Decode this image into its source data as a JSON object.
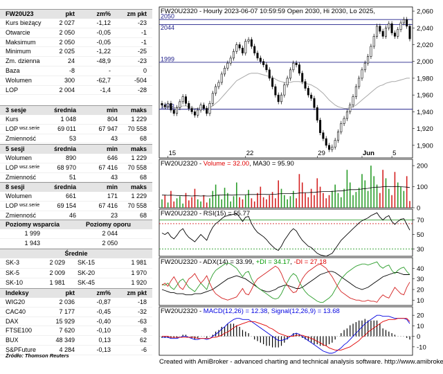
{
  "quote": {
    "symbol": "FW20U23",
    "headers": [
      "pkt",
      "zm%",
      "zm pkt"
    ],
    "rows": [
      {
        "label": "Kurs bieżący",
        "pkt": "2 027",
        "zm_pct": "-1,12",
        "zm_pkt": "-23"
      },
      {
        "label": "Otwarcie",
        "pkt": "2 050",
        "zm_pct": "-0,05",
        "zm_pkt": "-1"
      },
      {
        "label": "Maksimum",
        "pkt": "2 050",
        "zm_pct": "-0,05",
        "zm_pkt": "-1"
      },
      {
        "label": "Minimum",
        "pkt": "2 025",
        "zm_pct": "-1,22",
        "zm_pkt": "-25"
      },
      {
        "label": "Zm. dzienna",
        "pkt": "24",
        "zm_pct": "-48,9",
        "zm_pkt": "-23"
      },
      {
        "label": "Baza",
        "pkt": "-8",
        "zm_pct": "-",
        "zm_pkt": "0"
      },
      {
        "label": "Wolumen",
        "pkt": "300",
        "zm_pct": "-62,7",
        "zm_pkt": "-504"
      },
      {
        "label": "LOP",
        "pkt": "2 004",
        "zm_pct": "-1,4",
        "zm_pkt": "-28"
      }
    ]
  },
  "sessions": [
    {
      "title": "3 sesje",
      "headers": [
        "średnia",
        "min",
        "maks"
      ],
      "rows": [
        {
          "label": "Kurs",
          "avg": "1 048",
          "min": "804",
          "max": "1 229"
        },
        {
          "label": "LOP",
          "label_small": "wsz.serie",
          "avg": "69 011",
          "min": "67 947",
          "max": "70 558"
        },
        {
          "label": "Zmienność",
          "avg": "53",
          "min": "43",
          "max": "68"
        }
      ]
    },
    {
      "title": "5 sesji",
      "headers": [
        "średnia",
        "min",
        "maks"
      ],
      "rows": [
        {
          "label": "Wolumen",
          "avg": "890",
          "min": "646",
          "max": "1 229"
        },
        {
          "label": "LOP",
          "label_small": "wsz.serie",
          "avg": "68 970",
          "min": "67 416",
          "max": "70 558"
        },
        {
          "label": "Zmienność",
          "avg": "51",
          "min": "43",
          "max": "68"
        }
      ]
    },
    {
      "title": "8 sesji",
      "headers": [
        "średnia",
        "min",
        "maks"
      ],
      "rows": [
        {
          "label": "Wolumen",
          "avg": "661",
          "min": "171",
          "max": "1 229"
        },
        {
          "label": "LOP",
          "label_small": "wsz.serie",
          "avg": "69 154",
          "min": "67 416",
          "max": "70 558"
        },
        {
          "label": "Zmienność",
          "avg": "46",
          "min": "23",
          "max": "68"
        }
      ]
    }
  ],
  "levels": {
    "support_title": "Poziomy wsparcia",
    "resistance_title": "Poziomy oporu",
    "rows": [
      {
        "support": "1 999",
        "resistance": "2 044"
      },
      {
        "support": "1 943",
        "resistance": "2 050"
      }
    ]
  },
  "averages": {
    "title": "Średnie",
    "rows": [
      {
        "l1": "SK-3",
        "v1": "2 029",
        "l2": "SK-15",
        "v2": "1 981"
      },
      {
        "l1": "SK-5",
        "v1": "2 009",
        "l2": "SK-20",
        "v2": "1 970"
      },
      {
        "l1": "SK-10",
        "v1": "1 981",
        "l2": "SK-45",
        "v2": "1 920"
      }
    ]
  },
  "indices": {
    "title": "Indeksy",
    "headers": [
      "pkt",
      "zm%",
      "zm pkt"
    ],
    "rows": [
      {
        "label": "WIG20",
        "pkt": "2 036",
        "zm_pct": "-0,87",
        "zm_pkt": "-18"
      },
      {
        "label": "CAC40",
        "pkt": "7 177",
        "zm_pct": "-0,45",
        "zm_pkt": "-32"
      },
      {
        "label": "DAX",
        "pkt": "15 929",
        "zm_pct": "-0,40",
        "zm_pkt": "-63"
      },
      {
        "label": "FTSE100",
        "pkt": "7 620",
        "zm_pct": "-0,10",
        "zm_pkt": "-8"
      },
      {
        "label": "BUX",
        "pkt": "48 349",
        "zm_pct": "0,13",
        "zm_pkt": "62"
      },
      {
        "label": "S&PFuture",
        "pkt": "4 284",
        "zm_pct": "-0,13",
        "zm_pkt": "-6"
      }
    ]
  },
  "source": "Źródło: Thomson Reuters",
  "footer": "Created with AmiBroker - advanced charting and technical analysis software. http://www.amibroker.com",
  "chart_data": [
    {
      "type": "candlestick",
      "title": "FW20U2320 - Hourly 2023-06-07 10:59:59 Open 2030, Hi 2030, Lo 2025,",
      "ylim": [
        1885,
        2065
      ],
      "yticks": [
        "2,060",
        "2,040",
        "2,020",
        "2,000",
        "1,980",
        "1,960",
        "1,940",
        "1,920",
        "1,900"
      ],
      "ytick_values": [
        2060,
        2040,
        2020,
        2000,
        1980,
        1960,
        1940,
        1920,
        1900
      ],
      "xticks": [
        "15",
        "22",
        "29",
        "Jun",
        "5"
      ],
      "xtick_bars": [
        2,
        28,
        52,
        67,
        77
      ],
      "levels": [
        {
          "value": 2050,
          "label": "2050"
        },
        {
          "value": 2044,
          "label": "2044"
        },
        {
          "value": 1999,
          "label": "1999"
        },
        {
          "value": 1943,
          "label": "1943"
        }
      ],
      "close": [
        1948,
        1946,
        1950,
        1942,
        1938,
        1945,
        1952,
        1958,
        1950,
        1944,
        1940,
        1936,
        1942,
        1948,
        1944,
        1938,
        1950,
        1962,
        1970,
        1975,
        1985,
        1992,
        1998,
        2004,
        2012,
        2020,
        2016,
        2010,
        2024,
        2026,
        2018,
        2010,
        2004,
        2000,
        1996,
        1990,
        1980,
        1970,
        1960,
        1952,
        1960,
        1972,
        1980,
        1990,
        1998,
        1996,
        1986,
        1976,
        1968,
        1960,
        1956,
        1945,
        1930,
        1915,
        1908,
        1900,
        1895,
        1898,
        1906,
        1916,
        1926,
        1932,
        1940,
        1948,
        1958,
        1970,
        1980,
        1990,
        1998,
        2006,
        2018,
        2030,
        2042,
        2036,
        2030,
        2040,
        2045,
        2034,
        2030,
        2038,
        2046,
        2050,
        2042,
        2027
      ],
      "ma": [
        1946,
        1946,
        1947,
        1946,
        1945,
        1945,
        1946,
        1947,
        1947,
        1946,
        1945,
        1944,
        1944,
        1945,
        1945,
        1944,
        1945,
        1947,
        1950,
        1953,
        1957,
        1961,
        1965,
        1969,
        1973,
        1977,
        1979,
        1981,
        1983,
        1985,
        1986,
        1986,
        1986,
        1985,
        1984,
        1983,
        1982,
        1981,
        1979,
        1977,
        1976,
        1975,
        1975,
        1975,
        1976,
        1976,
        1976,
        1975,
        1974,
        1973,
        1972,
        1970,
        1968,
        1965,
        1962,
        1958,
        1954,
        1951,
        1948,
        1946,
        1945,
        1944,
        1944,
        1945,
        1946,
        1948,
        1951,
        1954,
        1957,
        1960,
        1963,
        1966,
        1969,
        1971,
        1972,
        1974,
        1975,
        1976,
        1976,
        1977,
        1978,
        1979,
        1980,
        1980
      ]
    },
    {
      "type": "bar",
      "title": "FW20U2320 - Volume = 32.00, MA30 = 95.90",
      "title_prefix": "FW20U2320 - ",
      "title_volume": "Volume = 32.00",
      "title_sep": ", ",
      "title_ma": "MA30 = 95.90",
      "yticks": [
        "200",
        "100",
        "0"
      ],
      "ytick_values": [
        200,
        100,
        0
      ],
      "ylim": [
        0,
        230
      ],
      "values": [
        40,
        60,
        25,
        80,
        30,
        45,
        55,
        20,
        70,
        35,
        50,
        90,
        40,
        30,
        60,
        25,
        45,
        80,
        110,
        60,
        40,
        95,
        70,
        30,
        55,
        120,
        50,
        40,
        60,
        85,
        45,
        30,
        70,
        100,
        50,
        40,
        60,
        75,
        45,
        130,
        90,
        60,
        40,
        55,
        80,
        45,
        160,
        120,
        70,
        50,
        90,
        60,
        140,
        100,
        70,
        45,
        60,
        80,
        110,
        70,
        50,
        90,
        180,
        120,
        60,
        75,
        95,
        160,
        130,
        80,
        200,
        150,
        110,
        70,
        180,
        140,
        90,
        60,
        170,
        120,
        100,
        80,
        150,
        32
      ],
      "ma": [
        60,
        60,
        59,
        60,
        59,
        58,
        58,
        57,
        57,
        57,
        56,
        57,
        57,
        56,
        57,
        56,
        56,
        57,
        59,
        60,
        60,
        61,
        61,
        60,
        60,
        62,
        62,
        62,
        62,
        63,
        63,
        63,
        63,
        64,
        64,
        63,
        63,
        64,
        64,
        66,
        67,
        67,
        67,
        67,
        68,
        68,
        70,
        71,
        72,
        72,
        73,
        73,
        75,
        76,
        77,
        77,
        77,
        78,
        79,
        80,
        80,
        81,
        84,
        86,
        86,
        86,
        87,
        89,
        91,
        92,
        95,
        97,
        98,
        98,
        100,
        101,
        101,
        100,
        101,
        101,
        100,
        99,
        98,
        96
      ]
    },
    {
      "type": "line",
      "title": "FW20U2320 - RSI(15) = 55.77",
      "yticks": [
        "70",
        "50",
        "30"
      ],
      "ytick_values": [
        70,
        50,
        30
      ],
      "ylim": [
        20,
        85
      ],
      "values": [
        52,
        50,
        53,
        47,
        44,
        49,
        55,
        58,
        51,
        46,
        43,
        40,
        45,
        50,
        46,
        42,
        52,
        60,
        65,
        68,
        72,
        75,
        76,
        77,
        78,
        79,
        74,
        68,
        74,
        75,
        65,
        58,
        53,
        50,
        47,
        43,
        38,
        34,
        30,
        28,
        34,
        42,
        48,
        54,
        58,
        55,
        48,
        42,
        38,
        34,
        32,
        28,
        24,
        22,
        21,
        20,
        22,
        24,
        30,
        36,
        42,
        46,
        50,
        54,
        58,
        62,
        66,
        69,
        71,
        73,
        76,
        78,
        80,
        74,
        70,
        74,
        76,
        68,
        64,
        68,
        71,
        72,
        64,
        56
      ]
    },
    {
      "type": "line",
      "title": "FW20U2320 - ADX(14) = 33.99, +DI = 34.17, -DI = 27.18",
      "title_prefix": "FW20U2320 - ADX(14) = 33.99, ",
      "title_pdi": "+DI = 34.17",
      "title_sep": ", ",
      "title_mdi": "-DI = 27.18",
      "yticks": [
        "40",
        "30",
        "20",
        "10"
      ],
      "ytick_values": [
        40,
        30,
        20,
        10
      ],
      "ylim": [
        5,
        50
      ],
      "series": [
        {
          "name": "ADX(14)",
          "values": [
            20,
            19,
            18,
            17,
            17,
            16,
            16,
            16,
            15,
            15,
            15,
            16,
            16,
            16,
            17,
            18,
            19,
            20,
            22,
            24,
            26,
            28,
            30,
            31,
            32,
            33,
            32,
            31,
            30,
            28,
            26,
            24,
            22,
            20,
            19,
            18,
            18,
            19,
            20,
            22,
            23,
            24,
            24,
            23,
            22,
            21,
            21,
            22,
            24,
            26,
            28,
            30,
            32,
            34,
            35,
            36,
            37,
            37,
            36,
            34,
            32,
            30,
            28,
            26,
            24,
            22,
            21,
            20,
            21,
            22,
            24,
            26,
            28,
            30,
            32,
            33,
            34,
            35,
            36,
            36,
            35,
            34,
            34,
            34
          ]
        },
        {
          "name": "+DI",
          "values": [
            25,
            24,
            26,
            22,
            20,
            24,
            28,
            30,
            26,
            22,
            20,
            18,
            22,
            26,
            23,
            20,
            28,
            34,
            38,
            40,
            42,
            44,
            45,
            44,
            42,
            40,
            36,
            32,
            36,
            37,
            30,
            25,
            22,
            20,
            18,
            16,
            14,
            12,
            11,
            12,
            16,
            22,
            27,
            32,
            35,
            33,
            27,
            22,
            18,
            15,
            13,
            11,
            9,
            8,
            8,
            10,
            12,
            15,
            20,
            25,
            30,
            33,
            36,
            38,
            40,
            42,
            43,
            44,
            44,
            43,
            44,
            45,
            46,
            42,
            40,
            42,
            43,
            38,
            35,
            38,
            40,
            41,
            37,
            34
          ]
        },
        {
          "name": "-DI",
          "values": [
            24,
            26,
            23,
            28,
            32,
            27,
            22,
            20,
            25,
            30,
            32,
            35,
            30,
            26,
            29,
            33,
            26,
            20,
            16,
            14,
            12,
            11,
            10,
            11,
            12,
            13,
            17,
            21,
            16,
            15,
            20,
            26,
            30,
            32,
            34,
            36,
            38,
            40,
            42,
            40,
            35,
            28,
            24,
            20,
            17,
            18,
            24,
            30,
            34,
            37,
            39,
            41,
            43,
            44,
            42,
            40,
            36,
            32,
            27,
            22,
            18,
            16,
            14,
            12,
            11,
            10,
            10,
            9,
            9,
            10,
            9,
            9,
            8,
            12,
            15,
            13,
            12,
            17,
            22,
            19,
            16,
            15,
            22,
            27
          ]
        }
      ]
    },
    {
      "type": "line",
      "title": "FW20U2320 - MACD(12,26) = 12.38, Signal(12,26,9) = 13.68",
      "title_prefix": "FW20U2320 - ",
      "title_macd": "MACD(12,26) = 12.38",
      "title_sep": ", ",
      "title_signal": "Signal(12,26,9) = 13.68",
      "yticks": [
        "20",
        "10",
        "0",
        "-10"
      ],
      "ytick_values": [
        20,
        10,
        0,
        -10
      ],
      "ylim": [
        -18,
        28
      ],
      "series": [
        {
          "name": "MACD(12,26)",
          "values": [
            -1,
            -1,
            -1,
            -2,
            -2,
            -2,
            -1,
            0,
            0,
            -1,
            -2,
            -3,
            -3,
            -2,
            -2,
            -3,
            -2,
            0,
            2,
            4,
            7,
            9,
            12,
            14,
            16,
            17,
            17,
            16,
            16,
            16,
            14,
            12,
            10,
            8,
            6,
            4,
            2,
            0,
            -2,
            -4,
            -4,
            -3,
            -2,
            0,
            2,
            3,
            2,
            0,
            -2,
            -4,
            -6,
            -8,
            -10,
            -12,
            -14,
            -15,
            -16,
            -16,
            -15,
            -13,
            -11,
            -8,
            -6,
            -3,
            0,
            3,
            6,
            9,
            12,
            14,
            16,
            18,
            20,
            20,
            19,
            19,
            19,
            18,
            17,
            17,
            17,
            17,
            16,
            12
          ]
        },
        {
          "name": "Signal(12,26,9)",
          "values": [
            0,
            0,
            0,
            -1,
            -1,
            -1,
            -1,
            -1,
            -1,
            -1,
            -1,
            -1,
            -2,
            -2,
            -2,
            -2,
            -2,
            -1,
            -1,
            0,
            1,
            3,
            4,
            6,
            8,
            10,
            11,
            12,
            13,
            14,
            14,
            14,
            13,
            12,
            11,
            10,
            8,
            7,
            5,
            3,
            2,
            1,
            0,
            0,
            0,
            1,
            1,
            1,
            0,
            -1,
            -2,
            -3,
            -5,
            -6,
            -8,
            -9,
            -11,
            -12,
            -13,
            -13,
            -13,
            -12,
            -11,
            -10,
            -8,
            -6,
            -4,
            -1,
            1,
            4,
            6,
            8,
            10,
            12,
            14,
            15,
            16,
            16,
            16,
            17,
            17,
            17,
            17,
            14
          ]
        }
      ]
    }
  ]
}
